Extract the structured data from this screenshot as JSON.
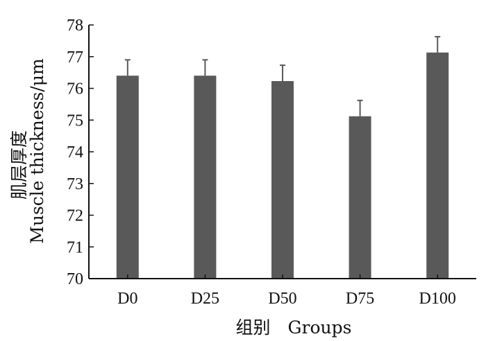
{
  "chart_data": {
    "type": "bar",
    "categories": [
      "D0",
      "D25",
      "D50",
      "D75",
      "D100"
    ],
    "values": [
      76.4,
      76.4,
      76.23,
      75.12,
      77.13
    ],
    "errors": [
      0.5,
      0.5,
      0.5,
      0.5,
      0.5
    ],
    "ylim": [
      70,
      78
    ],
    "yticks": [
      70,
      71,
      72,
      73,
      74,
      75,
      76,
      77,
      78
    ],
    "ylabel_cn": "肌层厚度",
    "ylabel_en": "Muscle thickness/μm",
    "xlabel": "组别　Groups",
    "grid": false,
    "legend": false,
    "bar_color": "#595959",
    "axis_color": "#111111"
  }
}
